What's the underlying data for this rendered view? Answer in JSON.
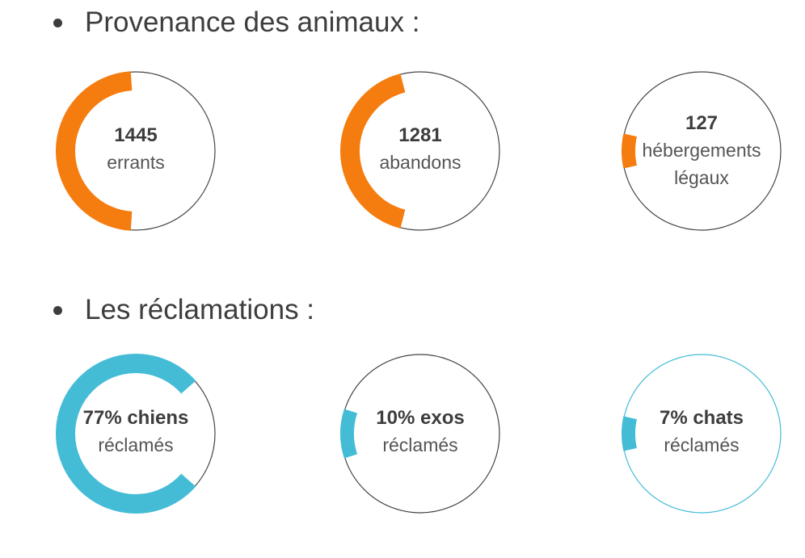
{
  "sections": [
    {
      "heading": "Provenance des animaux :"
    },
    {
      "heading": "Les réclamations :"
    }
  ],
  "chart_data": [
    {
      "type": "donut",
      "color": "#f57c0f",
      "items": [
        {
          "value": 1445,
          "line1": "1445",
          "line2": "errants",
          "line3": "",
          "fraction": 0.48
        },
        {
          "value": 1281,
          "line1": "1281",
          "line2": "abandons",
          "line3": "",
          "fraction": 0.42
        },
        {
          "value": 127,
          "line1": "127",
          "line2": "hébergements",
          "line3": "légaux",
          "fraction": 0.07
        }
      ]
    },
    {
      "type": "donut",
      "color": "#45bcd6",
      "items": [
        {
          "value": 77,
          "line1": "77% chiens",
          "line2": "réclamés",
          "line3": "",
          "fraction": 0.77
        },
        {
          "value": 10,
          "line1": "10% exos",
          "line2": "réclamés",
          "line3": "",
          "fraction": 0.1
        },
        {
          "value": 7,
          "line1": "7% chats",
          "line2": "réclamés",
          "line3": "",
          "fraction": 0.07
        }
      ]
    }
  ]
}
